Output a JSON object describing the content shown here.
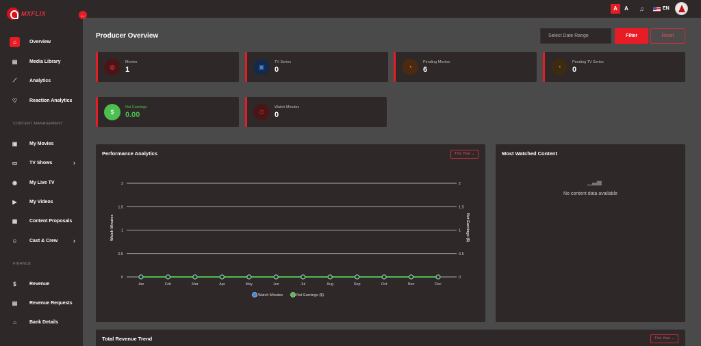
{
  "brand": {
    "name": "MXFLIX",
    "collapse_icon": "arrow-left-icon"
  },
  "sidebar": {
    "items": [
      {
        "label": "Overview",
        "icon": "home-icon",
        "glyph": "⌂",
        "active": true
      },
      {
        "label": "Media Library",
        "icon": "library-icon",
        "glyph": "▤"
      },
      {
        "label": "Analytics",
        "icon": "line-chart-icon",
        "glyph": "⟋"
      },
      {
        "label": "Reaction Analytics",
        "icon": "heart-icon",
        "glyph": "♡"
      }
    ],
    "section_content": "CONTENT MANAGEMENT",
    "content_items": [
      {
        "label": "My Movies",
        "icon": "film-icon",
        "glyph": "▣"
      },
      {
        "label": "TV Shows",
        "icon": "tv-icon",
        "glyph": "▭",
        "chevron": "›"
      },
      {
        "label": "My Live TV",
        "icon": "broadcast-icon",
        "glyph": "◉"
      },
      {
        "label": "My Videos",
        "icon": "video-icon",
        "glyph": "▶"
      },
      {
        "label": "Content Proposals",
        "icon": "document-icon",
        "glyph": "▦"
      },
      {
        "label": "Cast & Crew",
        "icon": "users-icon",
        "glyph": "☺",
        "chevron": "›"
      }
    ],
    "section_finance": "FINANCE",
    "finance_items": [
      {
        "label": "Revenue",
        "icon": "dollar-icon",
        "glyph": "$"
      },
      {
        "label": "Revenue Requests",
        "icon": "request-icon",
        "glyph": "▤"
      },
      {
        "label": "Bank Details",
        "icon": "bank-icon",
        "glyph": "⌂"
      }
    ]
  },
  "topbar": {
    "a_large": "A",
    "a_small": "A",
    "lang": "EN"
  },
  "header": {
    "title": "Producer Overview",
    "date_placeholder": "Select Date Range",
    "filter_label": "Filter",
    "reset_label": "Reset"
  },
  "stats": [
    {
      "label": "Movies",
      "value": "1",
      "icon": "film-icon",
      "glyph": "◍",
      "icon_bg": "#4a1516",
      "icon_color": "#e2343c"
    },
    {
      "label": "TV Series",
      "value": "0",
      "icon": "tv-icon",
      "glyph": "▣",
      "icon_bg": "#142a48",
      "icon_color": "#3f86e0"
    },
    {
      "label": "Pending Movies",
      "value": "6",
      "icon": "clock-icon",
      "glyph": "◔",
      "icon_bg": "#4a2a10",
      "icon_color": "#f0861c"
    },
    {
      "label": "Pending TV Series",
      "value": "0",
      "icon": "clock-icon",
      "glyph": "◔",
      "icon_bg": "#3c2a12",
      "icon_color": "#c7892e"
    },
    {
      "label": "Net Earnings",
      "value": "0.00",
      "icon": "dollar-icon",
      "glyph": "$",
      "icon_bg": "#4cbf4f",
      "icon_color": "#ffffff"
    },
    {
      "label": "Watch Minutes",
      "value": "0",
      "icon": "stopwatch-icon",
      "glyph": "⏱",
      "icon_bg": "#4a1516",
      "icon_color": "#e2343c"
    }
  ],
  "performance": {
    "title": "Performance Analytics",
    "period": "This Year ⌄"
  },
  "most_watched": {
    "title": "Most Watched Content",
    "empty_text": "No content data available"
  },
  "revenue_trend": {
    "title": "Total Revenue Trend",
    "period": "This Year ⌄"
  },
  "chart_data": {
    "type": "line",
    "categories": [
      "Jan",
      "Feb",
      "Mar",
      "Apr",
      "May",
      "Jun",
      "Jul",
      "Aug",
      "Sep",
      "Oct",
      "Nov",
      "Dec"
    ],
    "series": [
      {
        "name": "Watch Minutes",
        "values": [
          0,
          0,
          0,
          0,
          0,
          0,
          0,
          0,
          0,
          0,
          0,
          0
        ],
        "color": "#3f86e0",
        "axis": "left"
      },
      {
        "name": "Net Earnings ($)",
        "values": [
          0,
          0,
          0,
          0,
          0,
          0,
          0,
          0,
          0,
          0,
          0,
          0
        ],
        "color": "#4cbf4f",
        "axis": "right"
      }
    ],
    "ylabel_left": "Watch Minutes",
    "ylabel_right": "Net Earnings ($)",
    "ylim": [
      0,
      2
    ],
    "yticks": [
      "0",
      "0.5",
      "1",
      "1.5",
      "2"
    ],
    "grid": true,
    "legend": "bottom"
  }
}
